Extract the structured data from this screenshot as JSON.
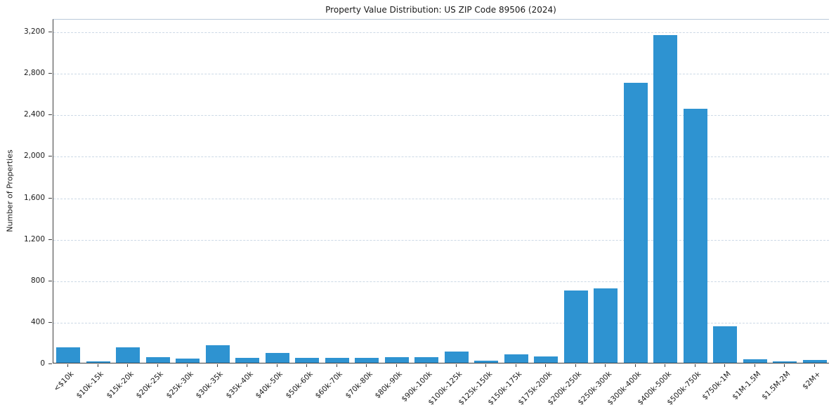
{
  "chart_data": {
    "type": "bar",
    "title": "Property Value Distribution: US ZIP Code 89506 (2024)",
    "xlabel": "",
    "ylabel": "Number of Properties",
    "categories": [
      "<$10k",
      "$10k-15k",
      "$15k-20k",
      "$20k-25k",
      "$25k-30k",
      "$30k-35k",
      "$35k-40k",
      "$40k-50k",
      "$50k-60k",
      "$60k-70k",
      "$70k-80k",
      "$80k-90k",
      "$90k-100k",
      "$100k-125k",
      "$125k-150k",
      "$150k-175k",
      "$175k-200k",
      "$200k-250k",
      "$250k-300k",
      "$300k-400k",
      "$400k-500k",
      "$500k-750k",
      "$750k-1M",
      "$1M-1.5M",
      "$1.5M-2M",
      "$2M+"
    ],
    "values": [
      150,
      15,
      150,
      55,
      40,
      170,
      45,
      95,
      50,
      50,
      45,
      55,
      55,
      110,
      20,
      80,
      60,
      700,
      720,
      2700,
      3160,
      2450,
      350,
      35,
      15,
      30
    ],
    "ylim": [
      0,
      3322
    ],
    "yticks": [
      0,
      400,
      800,
      1200,
      1600,
      2000,
      2400,
      2800,
      3200
    ],
    "ytick_labels": [
      "0",
      "400",
      "800",
      "1,200",
      "1,600",
      "2,000",
      "2,400",
      "2,800",
      "3,200"
    ],
    "grid": "horizontal-dashed",
    "legend": "none",
    "colors": {
      "bar": "#2e93d1",
      "grid": "#ccd9e6",
      "spine": "#3d3d3d",
      "text": "#1a1a1a"
    }
  }
}
